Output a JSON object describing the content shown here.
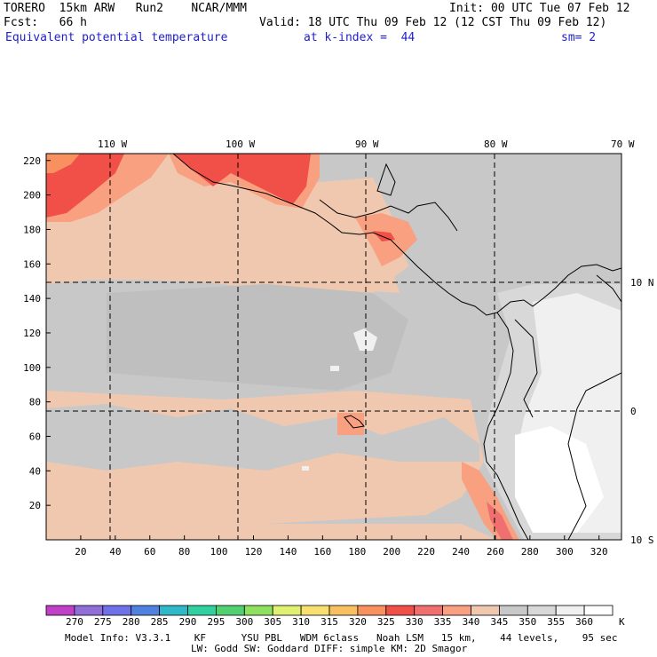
{
  "header": {
    "model": "TORERO  15km ARW   Run2    NCAR/MMM",
    "init": "Init: 00 UTC Tue 07 Feb 12",
    "fcst": "Fcst:   66 h",
    "valid": "Valid: 18 UTC Thu 09 Feb 12 (12 CST Thu 09 Feb 12)",
    "field": "Equivalent potential temperature",
    "level": "at k-index =  44",
    "smoothing": "sm= 2"
  },
  "map": {
    "lon_labels": [
      "110 W",
      "100 W",
      "90 W",
      "80 W",
      "70 W"
    ],
    "lat_labels": [
      "10 N",
      "0",
      "10 S"
    ],
    "y_ticks": [
      "20",
      "40",
      "60",
      "80",
      "100",
      "120",
      "140",
      "160",
      "180",
      "200",
      "220"
    ],
    "x_ticks": [
      "20",
      "40",
      "60",
      "80",
      "100",
      "120",
      "140",
      "160",
      "180",
      "200",
      "220",
      "240",
      "260",
      "280",
      "300",
      "320"
    ]
  },
  "colorbar": {
    "values": [
      "270",
      "275",
      "280",
      "285",
      "290",
      "295",
      "300",
      "305",
      "310",
      "315",
      "320",
      "325",
      "330",
      "335",
      "340",
      "345",
      "350",
      "355",
      "360"
    ],
    "unit": "K",
    "colors": [
      "#c040c8",
      "#9070d8",
      "#7070e8",
      "#5080e0",
      "#30b8c8",
      "#30d0a0",
      "#50d070",
      "#90e060",
      "#e0f070",
      "#f8e070",
      "#f8c060",
      "#f89060",
      "#f05048",
      "#f07070",
      "#f8a080",
      "#f0c8b0",
      "#c8c8c8",
      "#d8d8d8",
      "#f0f0f0",
      "#ffffff"
    ]
  },
  "footer": {
    "line1": "Model Info: V3.3.1    KF      YSU PBL   WDM 6class   Noah LSM   15 km,    44 levels,    95 sec",
    "line2": "LW: Godd SW: Goddard DIFF: simple KM: 2D Smagor"
  }
}
